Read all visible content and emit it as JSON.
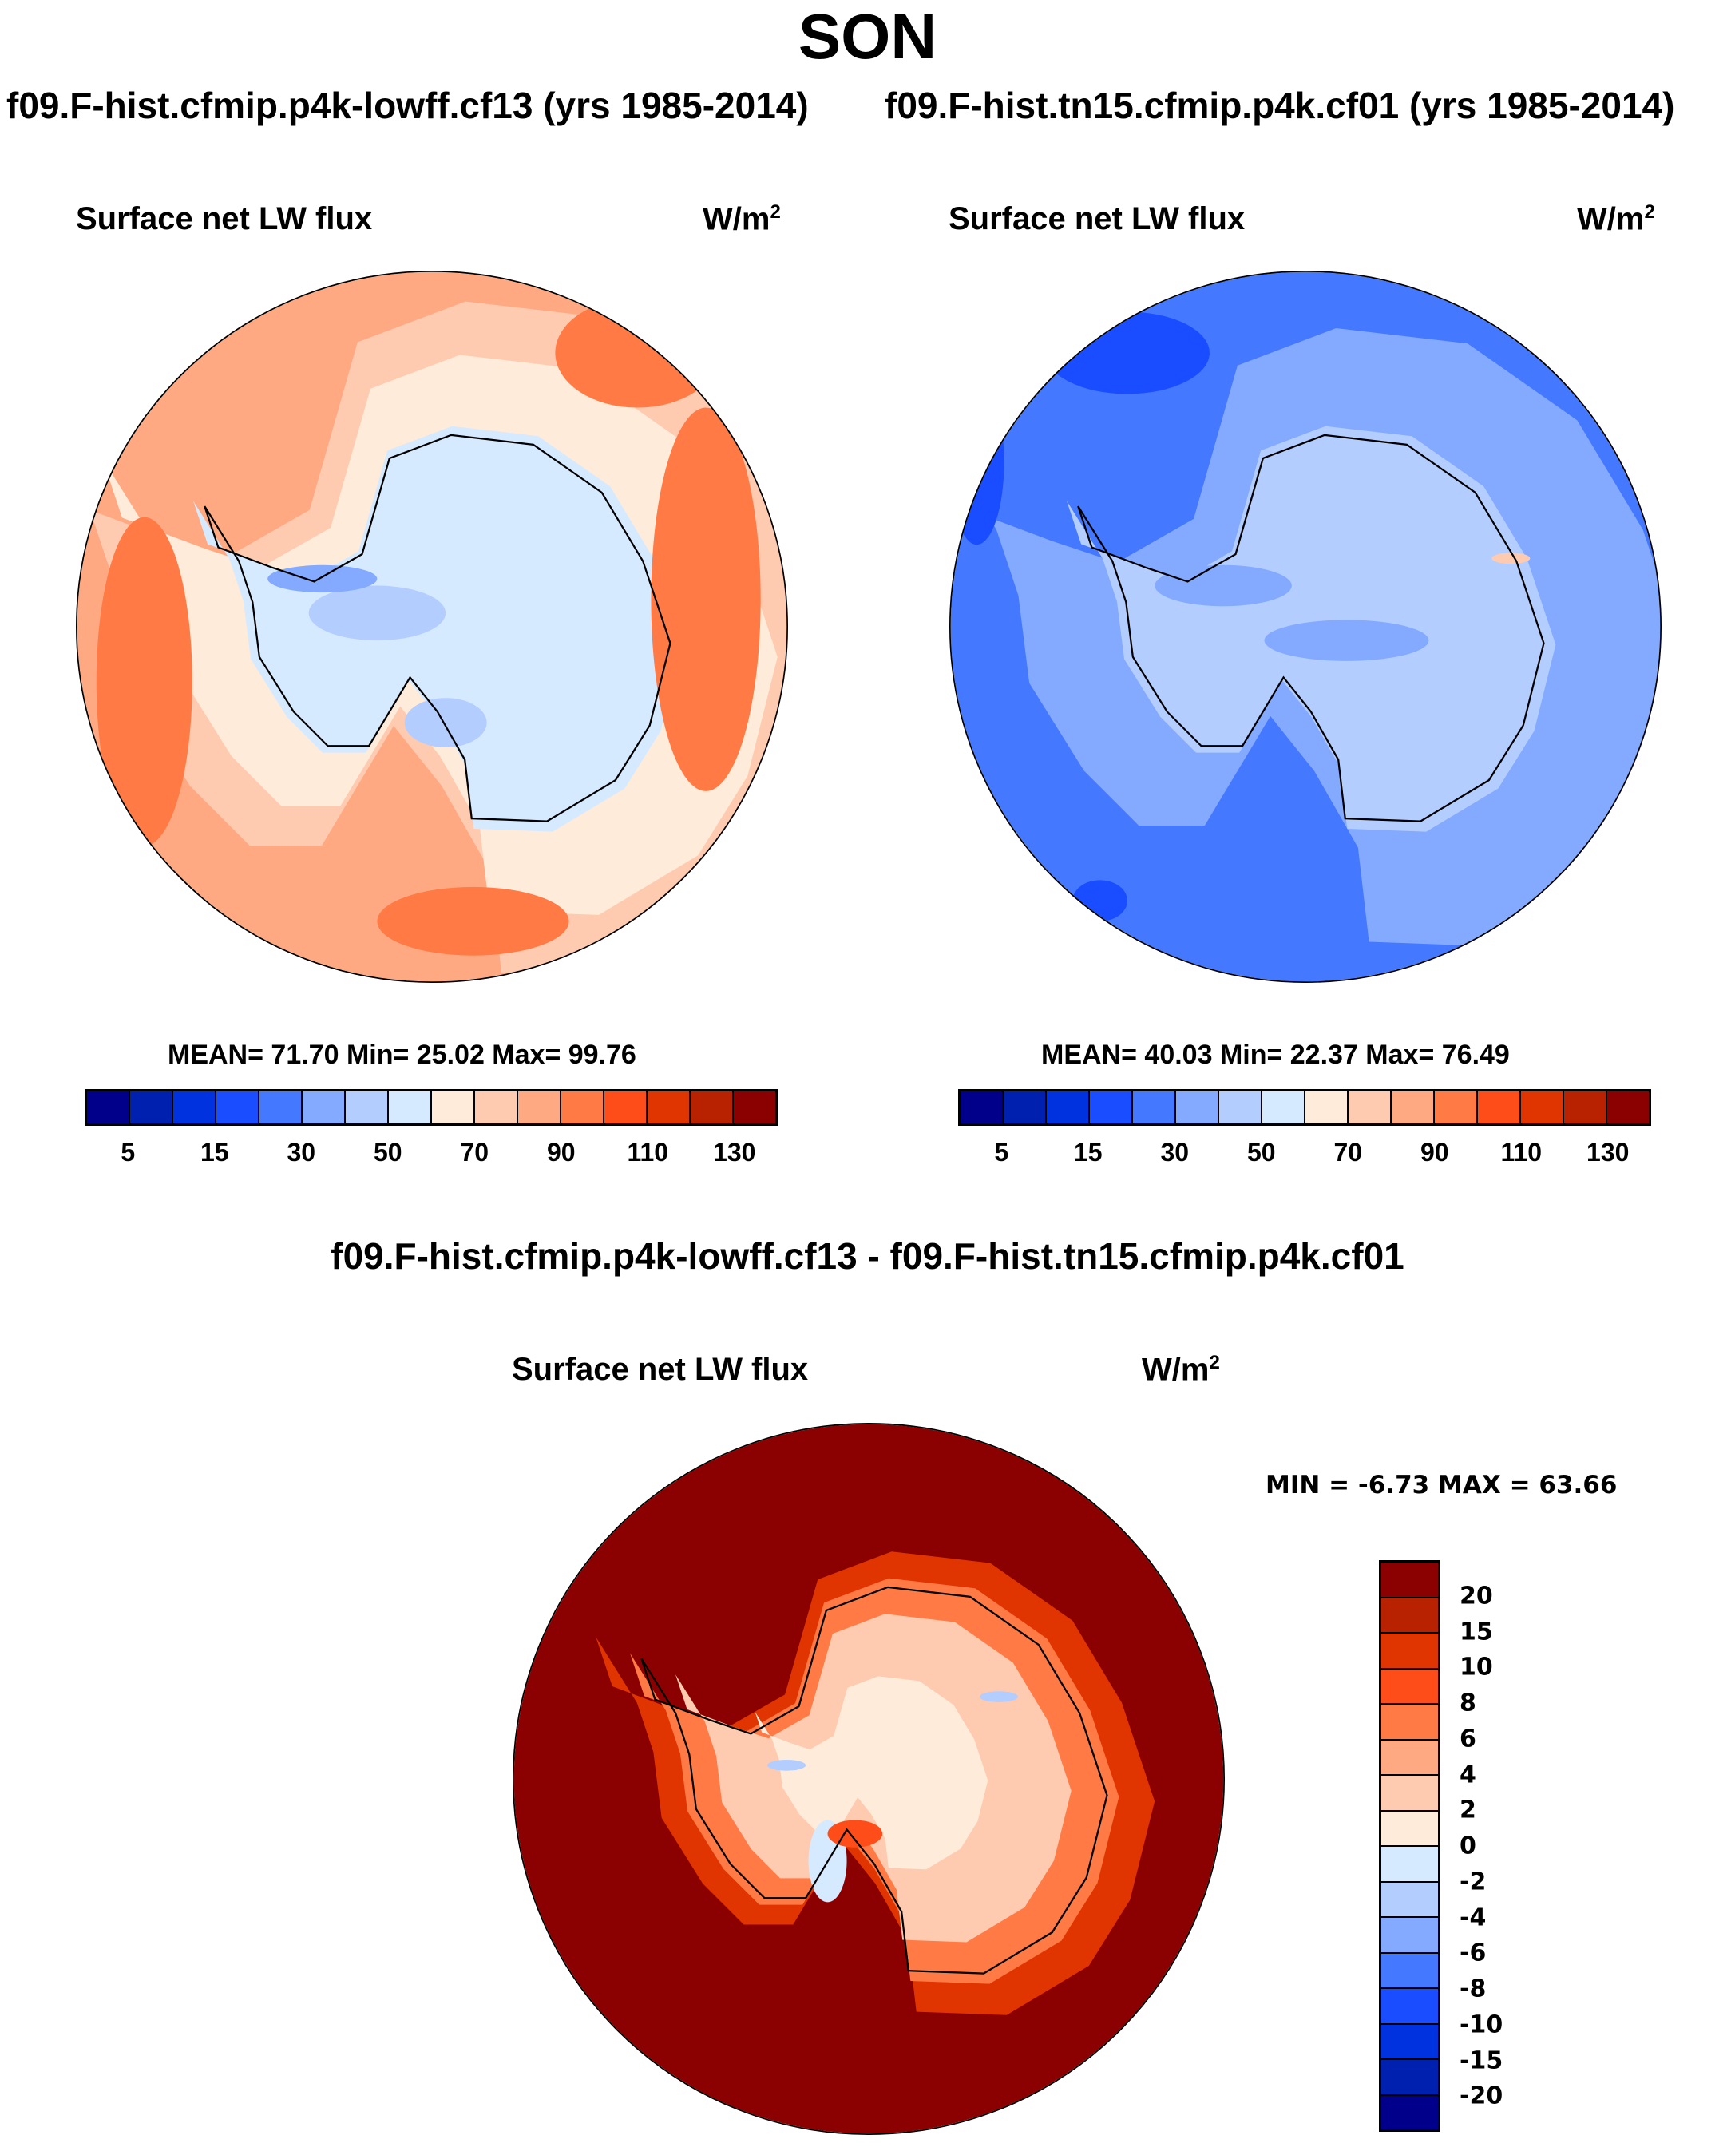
{
  "title": "SON",
  "panels": [
    {
      "subtitle": "f09.F-hist.cfmip.p4k-lowff.cf13 (yrs 1985-2014)",
      "variable": "Surface net LW flux",
      "units_base": "W/m",
      "units_exp": "2",
      "stats": "MEAN=  71.70  Min=  25.02  Max=  99.76"
    },
    {
      "subtitle": "f09.F-hist.tn15.cfmip.p4k.cf01 (yrs 1985-2014)",
      "variable": "Surface net LW flux",
      "units_base": "W/m",
      "units_exp": "2",
      "stats": "MEAN=  40.03  Min=  22.37  Max=  76.49"
    },
    {
      "subtitle": "f09.F-hist.cfmip.p4k-lowff.cf13 - f09.F-hist.tn15.cfmip.p4k.cf01",
      "variable": "Surface net LW flux",
      "units_base": "W/m",
      "units_exp": "2",
      "stats": "MIN =  -6.73 MAX =  63.66"
    }
  ],
  "colors": [
    "#00008b",
    "#0020b0",
    "#0032e0",
    "#1a4dff",
    "#4478ff",
    "#83aaff",
    "#b3cdff",
    "#d6eaff",
    "#ffebd9",
    "#ffcbb0",
    "#ffa983",
    "#ff7a45",
    "#ff4d1a",
    "#e03500",
    "#b82200",
    "#8b0000"
  ],
  "chart_data": [
    {
      "type": "heatmap",
      "title": "Surface net LW flux",
      "units": "W/m2",
      "colorbar_ticks": [
        "5",
        "15",
        "30",
        "50",
        "70",
        "90",
        "110",
        "130"
      ],
      "mean": 71.7,
      "min": 25.02,
      "max": 99.76
    },
    {
      "type": "heatmap",
      "title": "Surface net LW flux",
      "units": "W/m2",
      "colorbar_ticks": [
        "5",
        "15",
        "30",
        "50",
        "70",
        "90",
        "110",
        "130"
      ],
      "mean": 40.03,
      "min": 22.37,
      "max": 76.49
    },
    {
      "type": "heatmap",
      "title": "Surface net LW flux",
      "units": "W/m2",
      "colorbar_ticks": [
        "20",
        "15",
        "10",
        "8",
        "6",
        "4",
        "2",
        "0",
        "-2",
        "-4",
        "-6",
        "-8",
        "-10",
        "-15",
        "-20"
      ],
      "min": -6.73,
      "max": 63.66
    }
  ]
}
